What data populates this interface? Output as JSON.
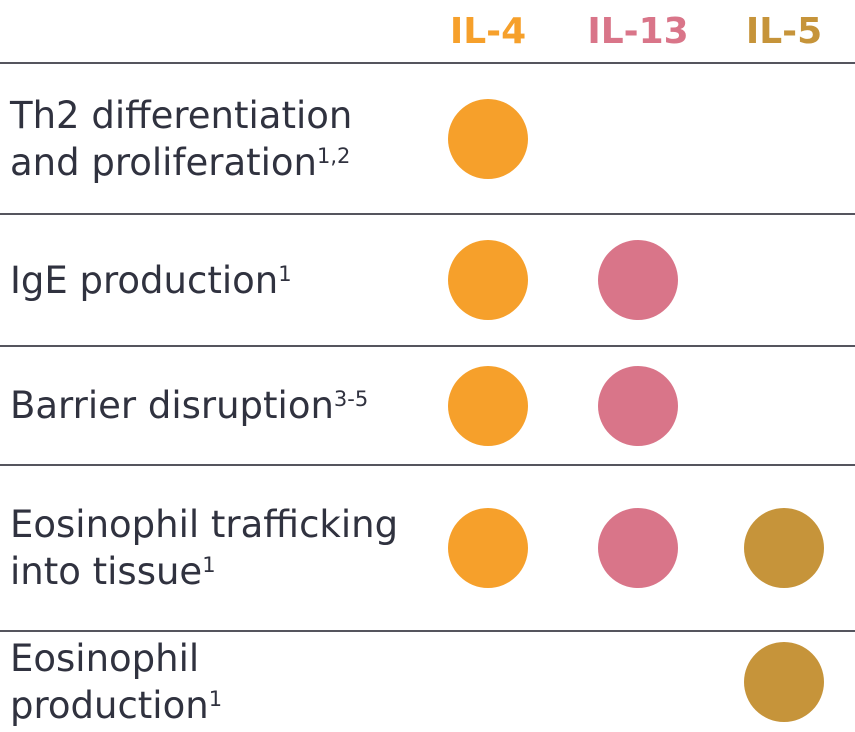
{
  "colors": {
    "background": "#FFFFFF",
    "text": "#30323F",
    "divider": "#55555E"
  },
  "chart_data": {
    "type": "table",
    "legend_position": "top",
    "columns": [
      {
        "label": "IL-4",
        "color": "#F6A02B"
      },
      {
        "label": "IL-13",
        "color": "#D97589"
      },
      {
        "label": "IL-5",
        "color": "#C6943A"
      }
    ],
    "rows": [
      {
        "label": "Th2 differentiation and proliferation",
        "label_lines": [
          "Th2 differentiation",
          "and proliferation"
        ],
        "superscript": "1,2",
        "markers": [
          true,
          false,
          false
        ]
      },
      {
        "label": "IgE production",
        "label_lines": [
          "IgE production"
        ],
        "superscript": "1",
        "markers": [
          true,
          true,
          false
        ]
      },
      {
        "label": "Barrier disruption",
        "label_lines": [
          "Barrier disruption"
        ],
        "superscript": "3-5",
        "markers": [
          true,
          true,
          false
        ]
      },
      {
        "label": "Eosinophil trafficking into tissue",
        "label_lines": [
          "Eosinophil trafficking",
          "into tissue"
        ],
        "superscript": "1",
        "markers": [
          true,
          true,
          true
        ]
      },
      {
        "label": "Eosinophil production",
        "label_lines": [
          "Eosinophil production"
        ],
        "superscript": "1",
        "markers": [
          false,
          false,
          true
        ]
      }
    ]
  }
}
